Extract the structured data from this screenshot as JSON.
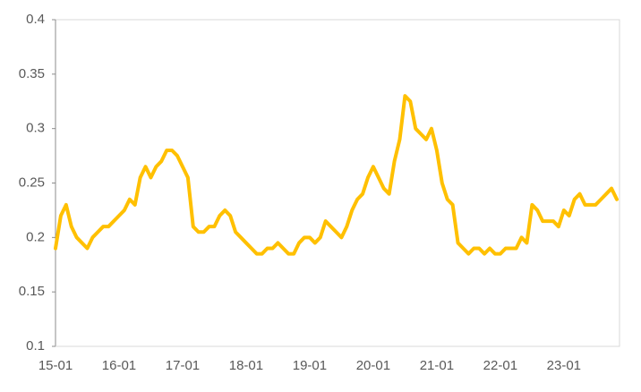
{
  "chart_data": {
    "type": "line",
    "categories": [
      "15-01",
      null,
      null,
      null,
      null,
      null,
      null,
      null,
      null,
      null,
      null,
      null,
      "16-01",
      null,
      null,
      null,
      null,
      null,
      null,
      null,
      null,
      null,
      null,
      null,
      "17-01",
      null,
      null,
      null,
      null,
      null,
      null,
      null,
      null,
      null,
      null,
      null,
      "18-01",
      null,
      null,
      null,
      null,
      null,
      null,
      null,
      null,
      null,
      null,
      null,
      "19-01",
      null,
      null,
      null,
      null,
      null,
      null,
      null,
      null,
      null,
      null,
      null,
      "20-01",
      null,
      null,
      null,
      null,
      null,
      null,
      null,
      null,
      null,
      null,
      null,
      "21-01",
      null,
      null,
      null,
      null,
      null,
      null,
      null,
      null,
      null,
      null,
      null,
      "22-01",
      null,
      null,
      null,
      null,
      null,
      null,
      null,
      null,
      null,
      null,
      null,
      "23-01",
      null,
      null,
      null,
      null,
      null,
      null,
      null,
      null,
      null,
      null
    ],
    "values": [
      0.19,
      0.22,
      0.23,
      0.21,
      0.2,
      0.195,
      0.19,
      0.2,
      0.205,
      0.21,
      0.21,
      0.215,
      0.22,
      0.225,
      0.235,
      0.23,
      0.255,
      0.265,
      0.255,
      0.265,
      0.27,
      0.28,
      0.28,
      0.275,
      0.265,
      0.255,
      0.21,
      0.205,
      0.205,
      0.21,
      0.21,
      0.22,
      0.225,
      0.22,
      0.205,
      0.2,
      0.195,
      0.19,
      0.185,
      0.185,
      0.19,
      0.19,
      0.195,
      0.19,
      0.185,
      0.185,
      0.195,
      0.2,
      0.2,
      0.195,
      0.2,
      0.215,
      0.21,
      0.205,
      0.2,
      0.21,
      0.225,
      0.235,
      0.24,
      0.255,
      0.265,
      0.255,
      0.245,
      0.24,
      0.27,
      0.29,
      0.33,
      0.325,
      0.3,
      0.295,
      0.29,
      0.3,
      0.28,
      0.25,
      0.235,
      0.23,
      0.195,
      0.19,
      0.185,
      0.19,
      0.19,
      0.185,
      0.19,
      0.185,
      0.185,
      0.19,
      0.19,
      0.19,
      0.2,
      0.195,
      0.23,
      0.225,
      0.215,
      0.215,
      0.215,
      0.21,
      0.225,
      0.22,
      0.235,
      0.24,
      0.23,
      0.23,
      0.23,
      0.235,
      0.24,
      0.245,
      0.235
    ],
    "color": "#ffc000",
    "ylim": [
      0.1,
      0.4
    ],
    "yticks": [
      0.1,
      0.15,
      0.2,
      0.25,
      0.3,
      0.35,
      0.4
    ]
  }
}
